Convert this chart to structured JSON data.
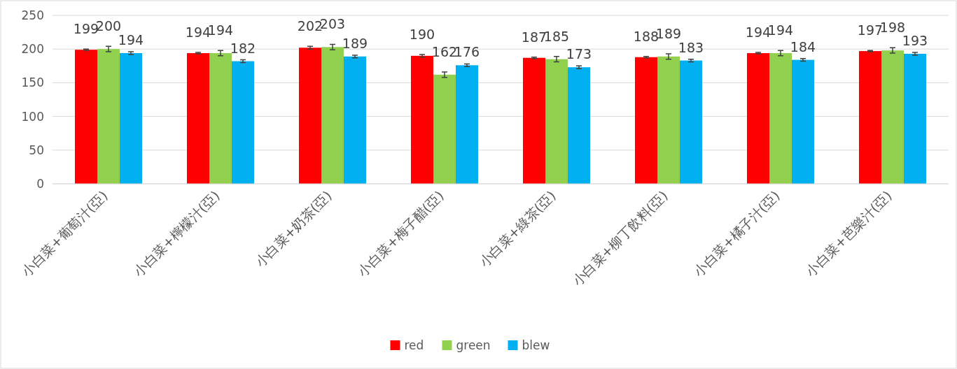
{
  "chart_data": {
    "type": "bar",
    "categories": [
      "小白菜+葡萄汁(亞)",
      "小白菜+檸檬汁(亞)",
      "小白菜+奶茶(亞)",
      "小白菜+梅子醋(亞)",
      "小白菜+綠茶(亞)",
      "小白菜+柳丁飲料(亞)",
      "小白菜+橘子汁(亞)",
      "小白菜+芭樂汁(亞)"
    ],
    "series": [
      {
        "name": "red",
        "color": "#ff0000",
        "values": [
          199,
          194,
          202,
          190,
          187,
          188,
          194,
          197
        ],
        "errors": [
          1,
          1,
          2,
          2,
          1,
          1,
          1,
          1
        ]
      },
      {
        "name": "green",
        "color": "#92d050",
        "values": [
          200,
          194,
          203,
          162,
          185,
          189,
          194,
          198
        ],
        "errors": [
          4,
          4,
          4,
          4,
          4,
          4,
          4,
          4
        ]
      },
      {
        "name": "blew",
        "color": "#00b0f0",
        "values": [
          194,
          182,
          189,
          176,
          173,
          183,
          184,
          193
        ],
        "errors": [
          2,
          2,
          2,
          2,
          2,
          2,
          2,
          2
        ]
      }
    ],
    "ylim": [
      0,
      250
    ],
    "yticks": [
      0,
      50,
      100,
      150,
      200,
      250
    ],
    "grid": "y",
    "legend": "bottom",
    "data_labels": true
  }
}
